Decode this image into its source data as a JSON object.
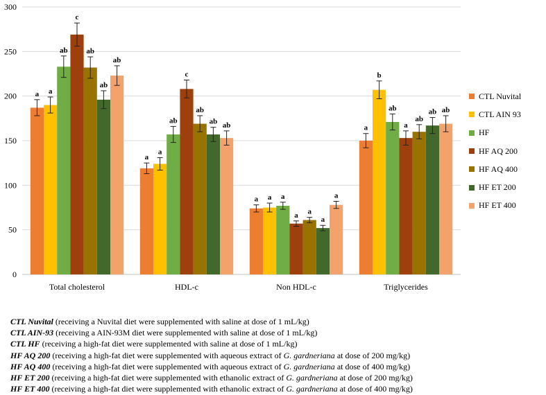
{
  "chart_data": {
    "type": "bar",
    "categories": [
      "Total cholesterol",
      "HDL-c",
      "Non HDL-c",
      "Triglycerides"
    ],
    "ylim": [
      0,
      300
    ],
    "yticks": [
      0,
      50,
      100,
      150,
      200,
      250,
      300
    ],
    "grid": true,
    "legend_position": "right",
    "series": [
      {
        "name": "CTL Nuvital",
        "color": "#ED7D31",
        "values": [
          187,
          119,
          74,
          150
        ],
        "errors": [
          9,
          6,
          4,
          8
        ],
        "labels": [
          "a",
          "a",
          "a",
          "a"
        ]
      },
      {
        "name": "CTL AIN 93",
        "color": "#FFC000",
        "values": [
          190,
          124,
          75,
          207
        ],
        "errors": [
          9,
          7,
          5,
          10
        ],
        "labels": [
          "a",
          "a",
          "a",
          "b"
        ]
      },
      {
        "name": "HF",
        "color": "#70AD47",
        "values": [
          233,
          157,
          77,
          171
        ],
        "errors": [
          12,
          9,
          4,
          9
        ],
        "labels": [
          "ab",
          "ab",
          "a",
          "ab"
        ]
      },
      {
        "name": "HF AQ 200",
        "color": "#9E3F0E",
        "values": [
          269,
          208,
          57,
          153
        ],
        "errors": [
          13,
          10,
          3,
          8
        ],
        "labels": [
          "c",
          "c",
          "a",
          "a"
        ]
      },
      {
        "name": "HF AQ 400",
        "color": "#997300",
        "values": [
          232,
          169,
          61,
          160
        ],
        "errors": [
          12,
          9,
          3,
          8
        ],
        "labels": [
          "ab",
          "ab",
          "a",
          "ab"
        ]
      },
      {
        "name": "HF ET 200",
        "color": "#43682B",
        "values": [
          196,
          157,
          52,
          167
        ],
        "errors": [
          10,
          8,
          3,
          9
        ],
        "labels": [
          "ab",
          "ab",
          "a",
          "ab"
        ]
      },
      {
        "name": "HF ET 400",
        "color": "#F4A26B",
        "values": [
          223,
          153,
          78,
          169
        ],
        "errors": [
          11,
          8,
          4,
          9
        ],
        "labels": [
          "ab",
          "ab",
          "a",
          "ab"
        ]
      }
    ]
  },
  "notes": [
    {
      "term": "CTL Nuvital",
      "pre": " (receiving a Nuvital diet were supplemented with saline at dose of 1 mL/kg)",
      "species": "",
      "post": ""
    },
    {
      "term": "CTL AIN-93",
      "pre": " (receiving a AIN-93M diet were supplemented with saline at dose of 1 mL/kg)",
      "species": "",
      "post": ""
    },
    {
      "term": "CTL HF",
      "pre": " (receiving a high-fat diet were supplemented with saline at dose of 1 mL/kg)",
      "species": "",
      "post": ""
    },
    {
      "term": "HF AQ 200",
      "pre": " (receiving a high-fat diet were supplemented with aqueous extract of ",
      "species": "G. gardneriana",
      "post": " at dose of 200 mg/kg)"
    },
    {
      "term": "HF AQ 400",
      "pre": " (receiving a high-fat diet were supplemented with aqueous extract of ",
      "species": "G. gardneriana",
      "post": " at dose of 400 mg/kg)"
    },
    {
      "term": "HF ET 200",
      "pre": " (receiving a high-fat diet were supplemented with ethanolic extract of ",
      "species": "G. gardneriana",
      "post": " at dose of 200 mg/kg)"
    },
    {
      "term": "HF ET 400",
      "pre": " (receiving a high-fat diet were supplemented with ethanolic extract of ",
      "species": "G. gardneriana",
      "post": " at dose of 400 mg/kg)"
    }
  ]
}
